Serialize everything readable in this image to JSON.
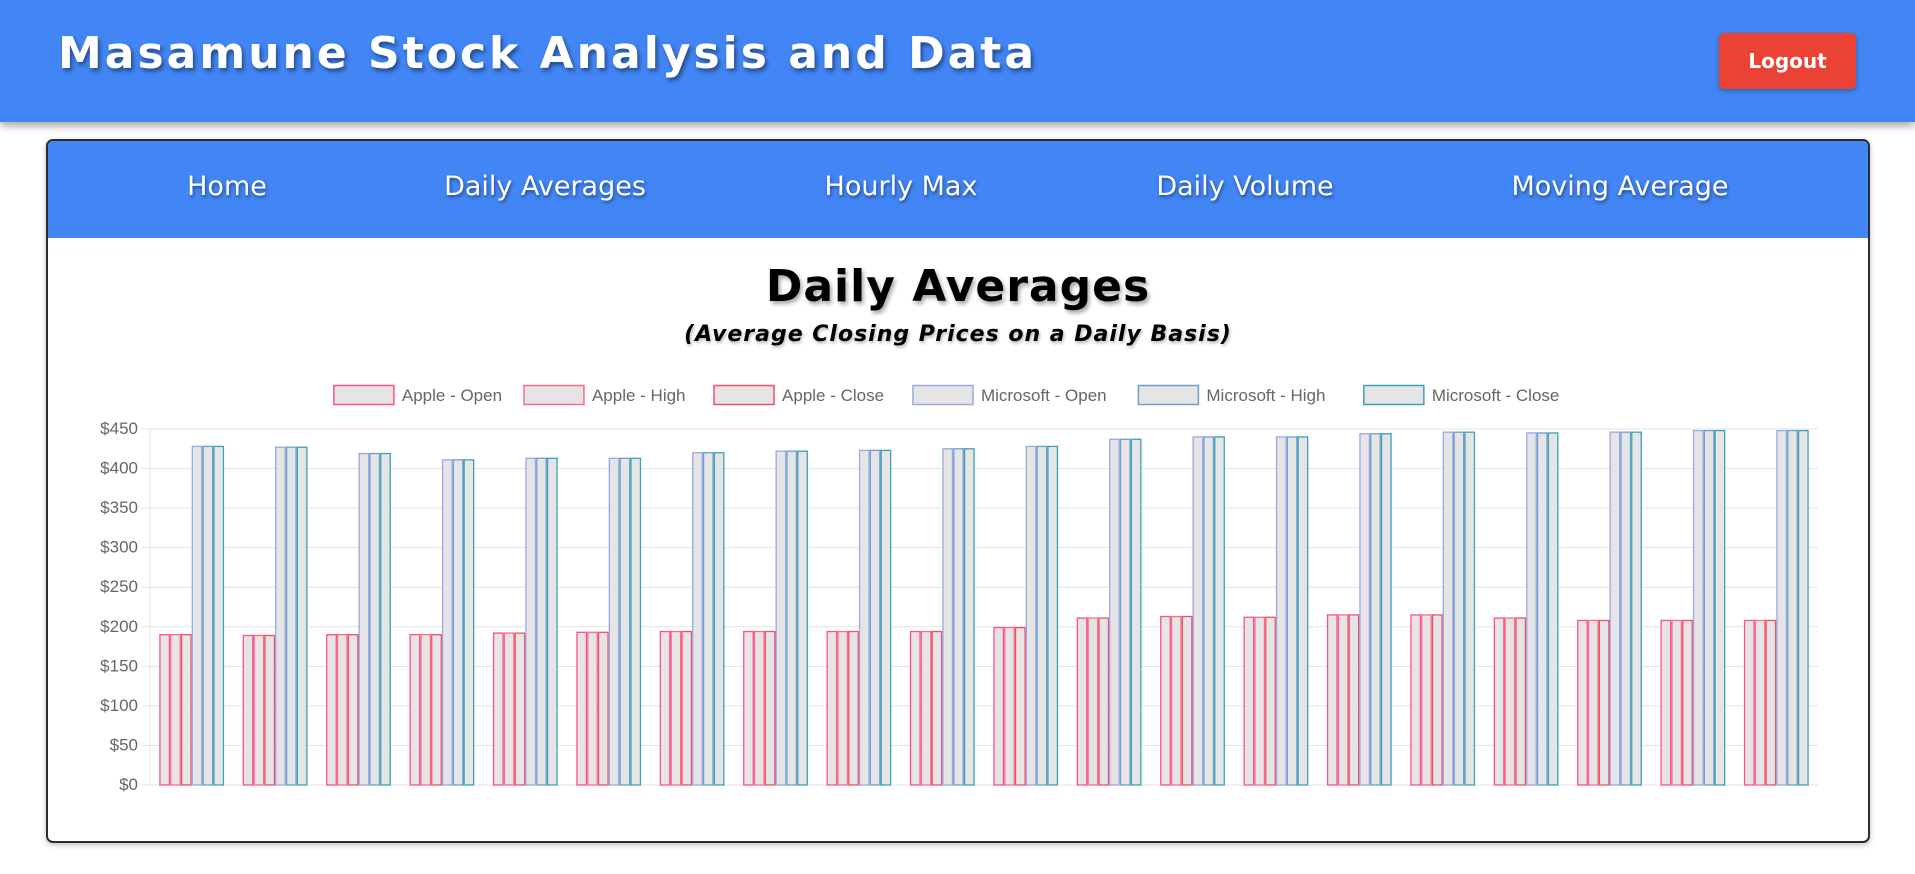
{
  "header": {
    "title": "Masamune Stock Analysis and Data",
    "logout_label": "Logout"
  },
  "nav": {
    "items": [
      {
        "label": "Home"
      },
      {
        "label": "Daily Averages"
      },
      {
        "label": "Hourly Max"
      },
      {
        "label": "Daily Volume"
      },
      {
        "label": "Moving Average"
      }
    ]
  },
  "page": {
    "title": "Daily Averages",
    "subtitle": "(Average Closing Prices on a Daily Basis)"
  },
  "colors": {
    "header_blue": "#4285f4",
    "logout_red": "#ea4335",
    "bar_fill": "#e5e5e5"
  },
  "chart_data": {
    "type": "bar",
    "grid": true,
    "legend_position": "top",
    "ylim": [
      0,
      450
    ],
    "ytick_step": 50,
    "ytick_prefix": "$",
    "categories": [
      "",
      "",
      "",
      "",
      "",
      "",
      "",
      "",
      "",
      "",
      "",
      "",
      "",
      "",
      "",
      "",
      "",
      "",
      "",
      ""
    ],
    "series": [
      {
        "name": "Apple - Open",
        "color": "#ff4f8c",
        "values": [
          190,
          189,
          190,
          190,
          192,
          193,
          194,
          194,
          194,
          194,
          199,
          211,
          213,
          212,
          215,
          215,
          211,
          208,
          208,
          208
        ]
      },
      {
        "name": "Apple - High",
        "color": "#ff6b86",
        "values": [
          190,
          189,
          190,
          190,
          192,
          193,
          194,
          194,
          194,
          194,
          199,
          211,
          213,
          212,
          215,
          215,
          211,
          208,
          208,
          208
        ]
      },
      {
        "name": "Apple - Close",
        "color": "#f0506a",
        "values": [
          190,
          189,
          190,
          190,
          192,
          193,
          194,
          194,
          194,
          194,
          199,
          211,
          213,
          212,
          215,
          215,
          211,
          208,
          208,
          208
        ]
      },
      {
        "name": "Microsoft - Open",
        "color": "#9aa8e6",
        "values": [
          428,
          427,
          419,
          411,
          413,
          413,
          420,
          422,
          423,
          425,
          428,
          437,
          440,
          440,
          444,
          446,
          445,
          446,
          448,
          448
        ]
      },
      {
        "name": "Microsoft - High",
        "color": "#6e9fd0",
        "values": [
          428,
          427,
          419,
          411,
          413,
          413,
          420,
          422,
          423,
          425,
          428,
          437,
          440,
          440,
          444,
          446,
          445,
          446,
          448,
          448
        ]
      },
      {
        "name": "Microsoft - Close",
        "color": "#3aa2b8",
        "values": [
          428,
          427,
          419,
          411,
          413,
          413,
          420,
          422,
          423,
          425,
          428,
          437,
          440,
          440,
          444,
          446,
          445,
          446,
          448,
          448
        ]
      }
    ]
  }
}
